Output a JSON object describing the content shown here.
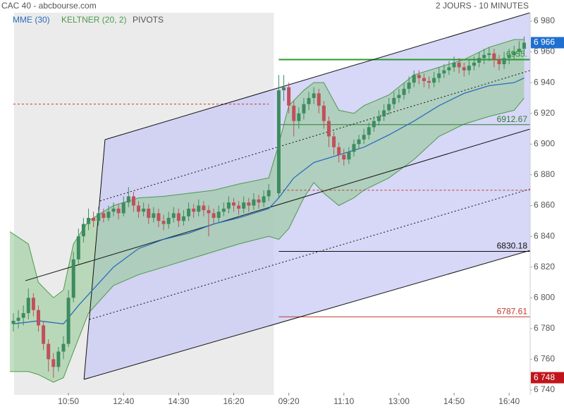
{
  "chart_data": {
    "type": "candlestick",
    "title": "CAC 40 - abcbourse.com",
    "subtitle": "2 JOURS - 10 MINUTES",
    "xlim": [
      -0.7,
      103.2
    ],
    "ylim": [
      6736.8,
      6985.5
    ],
    "xticks": [
      {
        "value": 11,
        "label": "10:50"
      },
      {
        "value": 22,
        "label": "12:40"
      },
      {
        "value": 33,
        "label": "14:30"
      },
      {
        "value": 44,
        "label": "16:20"
      },
      {
        "value": 55,
        "label": "09:20"
      },
      {
        "value": 66,
        "label": "11:10"
      },
      {
        "value": 77,
        "label": "13:00"
      },
      {
        "value": 88,
        "label": "14:50"
      },
      {
        "value": 99,
        "label": "16:40"
      }
    ],
    "yticks": [
      {
        "value": 6740,
        "label": "6 740"
      },
      {
        "value": 6760,
        "label": "6 760"
      },
      {
        "value": 6780,
        "label": "6 780"
      },
      {
        "value": 6800,
        "label": "6 800"
      },
      {
        "value": 6820,
        "label": "6 820"
      },
      {
        "value": 6840,
        "label": "6 840"
      },
      {
        "value": 6860,
        "label": "6 860"
      },
      {
        "value": 6880,
        "label": "6 880"
      },
      {
        "value": 6900,
        "label": "6 900"
      },
      {
        "value": 6920,
        "label": "6 920"
      },
      {
        "value": 6940,
        "label": "6 940"
      },
      {
        "value": 6960,
        "label": "6 960"
      },
      {
        "value": 6980,
        "label": "6 980"
      }
    ],
    "up_color": "#3d8c5f",
    "down_color": "#c0505a",
    "previous_session_color": "#ebebeb",
    "x": [
      0,
      1,
      2,
      3,
      4,
      5,
      6,
      7,
      8,
      9,
      10,
      11,
      12,
      13,
      14,
      15,
      16,
      17,
      18,
      19,
      20,
      21,
      22,
      23,
      24,
      25,
      26,
      27,
      28,
      29,
      30,
      31,
      32,
      33,
      34,
      35,
      36,
      37,
      38,
      39,
      40,
      41,
      42,
      43,
      44,
      45,
      46,
      47,
      48,
      49,
      50,
      51,
      53,
      54,
      55,
      56,
      57,
      58,
      59,
      60,
      61,
      62,
      63,
      64,
      65,
      66,
      67,
      68,
      69,
      70,
      71,
      72,
      73,
      74,
      75,
      76,
      77,
      78,
      79,
      80,
      81,
      82,
      83,
      84,
      85,
      86,
      87,
      88,
      89,
      90,
      91,
      92,
      93,
      94,
      95,
      96,
      97,
      98,
      99,
      100,
      101,
      102
    ],
    "open": [
      6783,
      6785,
      6787,
      6790,
      6800,
      6792,
      6782,
      6770,
      6760,
      6755,
      6765,
      6770,
      6800,
      6825,
      6840,
      6848,
      6852,
      6850,
      6855,
      6852,
      6856,
      6858,
      6855,
      6862,
      6866,
      6860,
      6856,
      6858,
      6852,
      6855,
      6850,
      6848,
      6852,
      6855,
      6850,
      6853,
      6858,
      6856,
      6860,
      6857,
      6855,
      6852,
      6856,
      6858,
      6862,
      6860,
      6858,
      6862,
      6860,
      6864,
      6862,
      6866,
      6868,
      6935,
      6937,
      6925,
      6915,
      6920,
      6926,
      6930,
      6933,
      6925,
      6915,
      6905,
      6898,
      6893,
      6890,
      6895,
      6900,
      6903,
      6906,
      6911,
      6915,
      6918,
      6922,
      6926,
      6930,
      6932,
      6936,
      6940,
      6945,
      6943,
      6941,
      6940,
      6943,
      6946,
      6948,
      6950,
      6953,
      6950,
      6948,
      6951,
      6953,
      6956,
      6958,
      6959,
      6955,
      6952,
      6956,
      6958,
      6960,
      6962
    ],
    "high": [
      6790,
      6792,
      6795,
      6806,
      6803,
      6795,
      6785,
      6773,
      6764,
      6768,
      6775,
      6805,
      6830,
      6845,
      6852,
      6858,
      6856,
      6859,
      6858,
      6860,
      6862,
      6861,
      6866,
      6872,
      6869,
      6863,
      6862,
      6861,
      6859,
      6858,
      6854,
      6856,
      6859,
      6858,
      6857,
      6862,
      6861,
      6864,
      6863,
      6860,
      6858,
      6860,
      6862,
      6866,
      6865,
      6863,
      6866,
      6865,
      6868,
      6867,
      6870,
      6874,
      6945,
      6945,
      6940,
      6928,
      6924,
      6930,
      6934,
      6937,
      6936,
      6928,
      6918,
      6908,
      6901,
      6897,
      6898,
      6903,
      6906,
      6910,
      6914,
      6918,
      6922,
      6926,
      6930,
      6934,
      6936,
      6940,
      6944,
      6948,
      6948,
      6946,
      6944,
      6947,
      6950,
      6952,
      6954,
      6957,
      6956,
      6953,
      6955,
      6957,
      6960,
      6962,
      6963,
      6962,
      6958,
      6960,
      6962,
      6964,
      6967,
      6970
    ],
    "low": [
      6778,
      6780,
      6782,
      6786,
      6788,
      6778,
      6766,
      6752,
      6748,
      6752,
      6760,
      6768,
      6797,
      6822,
      6836,
      6844,
      6846,
      6847,
      6849,
      6850,
      6853,
      6851,
      6853,
      6859,
      6856,
      6852,
      6853,
      6848,
      6849,
      6846,
      6844,
      6845,
      6849,
      6846,
      6847,
      6850,
      6852,
      6853,
      6853,
      6840,
      6848,
      6849,
      6853,
      6855,
      6856,
      6854,
      6855,
      6856,
      6857,
      6858,
      6859,
      6863,
      6865,
      6928,
      6920,
      6905,
      6910,
      6916,
      6922,
      6926,
      6920,
      6910,
      6898,
      6893,
      6888,
      6886,
      6887,
      6892,
      6897,
      6900,
      6903,
      6908,
      6912,
      6915,
      6919,
      6923,
      6927,
      6929,
      6933,
      6937,
      6939,
      6937,
      6936,
      6937,
      6940,
      6943,
      6945,
      6947,
      6946,
      6944,
      6945,
      6948,
      6950,
      6952,
      6954,
      6950,
      6948,
      6949,
      6952,
      6955,
      6957,
      6958
    ],
    "close": [
      6785,
      6787,
      6790,
      6800,
      6792,
      6782,
      6770,
      6760,
      6755,
      6765,
      6770,
      6800,
      6825,
      6840,
      6848,
      6852,
      6850,
      6855,
      6852,
      6856,
      6858,
      6855,
      6862,
      6866,
      6860,
      6856,
      6858,
      6852,
      6855,
      6850,
      6848,
      6852,
      6855,
      6850,
      6853,
      6858,
      6856,
      6860,
      6857,
      6855,
      6852,
      6856,
      6858,
      6862,
      6860,
      6858,
      6862,
      6860,
      6864,
      6862,
      6866,
      6870,
      6935,
      6937,
      6925,
      6915,
      6920,
      6926,
      6930,
      6933,
      6925,
      6915,
      6905,
      6898,
      6893,
      6890,
      6895,
      6900,
      6903,
      6906,
      6911,
      6915,
      6918,
      6922,
      6926,
      6930,
      6932,
      6936,
      6940,
      6945,
      6943,
      6941,
      6940,
      6943,
      6946,
      6948,
      6950,
      6953,
      6950,
      6948,
      6951,
      6953,
      6956,
      6958,
      6959,
      6955,
      6952,
      6956,
      6958,
      6960,
      6962,
      6966
    ],
    "ema": {
      "name": "MME (30)",
      "color": "#2a6ebb",
      "x": [
        0,
        5,
        10,
        13,
        20,
        25,
        30,
        35,
        40,
        45,
        51,
        53,
        56,
        60,
        65,
        70,
        75,
        80,
        85,
        90,
        95,
        100,
        102
      ],
      "values": [
        6783,
        6785,
        6783,
        6795,
        6820,
        6832,
        6838,
        6842,
        6848,
        6852,
        6858,
        6865,
        6878,
        6888,
        6893,
        6898,
        6906,
        6915,
        6925,
        6933,
        6938,
        6940,
        6943
      ]
    },
    "keltner": {
      "name": "KELTNER (20, 2)",
      "color": "#4c9a4c",
      "fill": "#8fc98f",
      "x": [
        -0.7,
        3,
        5,
        8,
        10,
        12,
        15,
        20,
        25,
        30,
        35,
        40,
        45,
        51,
        53,
        55,
        58,
        60,
        62,
        65,
        68,
        70,
        75,
        80,
        85,
        90,
        95,
        100,
        102
      ],
      "upper": [
        6843,
        6835,
        6810,
        6800,
        6805,
        6835,
        6850,
        6860,
        6865,
        6866,
        6868,
        6870,
        6874,
        6878,
        6900,
        6925,
        6935,
        6940,
        6940,
        6922,
        6920,
        6925,
        6932,
        6945,
        6950,
        6955,
        6963,
        6968,
        6968
      ],
      "lower": [
        6752,
        6752,
        6750,
        6745,
        6748,
        6765,
        6790,
        6808,
        6815,
        6820,
        6825,
        6830,
        6835,
        6840,
        6838,
        6845,
        6865,
        6875,
        6868,
        6860,
        6865,
        6870,
        6878,
        6890,
        6905,
        6913,
        6918,
        6922,
        6930
      ]
    },
    "pivots": {
      "name": "PIVOTS",
      "legend_color": "#555555",
      "lines": [
        {
          "value": 6926,
          "x": [
            0,
            51
          ],
          "color": "#c0392b",
          "dashed": true
        },
        {
          "value": 6870,
          "x": [
            53,
            103.2
          ],
          "color": "#c0392b",
          "dashed": true
        },
        {
          "value": 6955,
          "x": [
            53,
            103.2
          ],
          "color": "#2b9a2b",
          "label": "6955."
        },
        {
          "value": 6912.67,
          "x": [
            53,
            103.2
          ],
          "color": "#2e7d32",
          "label": "6912.67"
        },
        {
          "value": 6830.18,
          "x": [
            53,
            103.2
          ],
          "color": "#111111",
          "label": "6830.18"
        },
        {
          "value": 6787.61,
          "x": [
            53,
            103.2
          ],
          "color": "#c0392b",
          "label": "6787.61"
        }
      ]
    },
    "pitchfork": {
      "fill": "#c9c9f4",
      "color": "#111111",
      "lines": [
        {
          "x": [
            18.3,
            103.2
          ],
          "y": [
            6902.9,
            6985.5
          ],
          "dashed": false
        },
        {
          "x": [
            14.1,
            103.2
          ],
          "y": [
            6746.9,
            6830.8
          ],
          "dashed": false
        },
        {
          "x": [
            14.1,
            18.3
          ],
          "y": [
            6746.9,
            6902.9
          ],
          "dashed": false
        },
        {
          "x": [
            2.4,
            103.2
          ],
          "y": [
            6811.1,
            6909.8
          ],
          "dashed": false
        },
        {
          "x": [
            17.3,
            103.2
          ],
          "y": [
            6863,
            6947.9
          ],
          "dashed": true
        },
        {
          "x": [
            15.2,
            103.2
          ],
          "y": [
            6785.9,
            6870.8
          ],
          "dashed": true
        }
      ]
    },
    "last_price": {
      "value": 6966,
      "label": "6 966",
      "color": "#1f6fd1"
    },
    "low_price": {
      "value": 6748,
      "label": "6 748",
      "color": "#c0161b"
    }
  }
}
